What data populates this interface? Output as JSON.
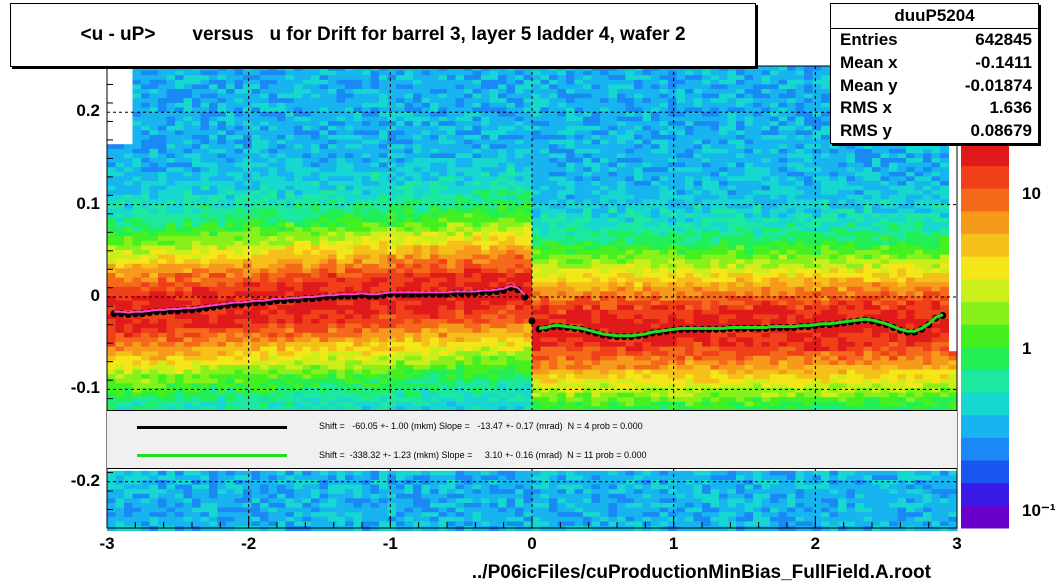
{
  "title": "<u - uP>       versus   u for Drift for barrel 3, layer 5 ladder 4, wafer 2",
  "stats": {
    "name": "duuP5204",
    "rows": [
      {
        "label": "Entries",
        "value": "642845"
      },
      {
        "label": "Mean x",
        "value": "-0.1411"
      },
      {
        "label": "Mean y",
        "value": "-0.01874"
      },
      {
        "label": "RMS x",
        "value": "1.636"
      },
      {
        "label": "RMS y",
        "value": "0.08679"
      }
    ]
  },
  "fits": [
    {
      "color": "#000000",
      "text": "Shift =   -60.05 +- 1.00 (mkm) Slope =   -13.47 +- 0.17 (mrad)  N = 4 prob = 0.000"
    },
    {
      "color": "#22dd22",
      "text": "Shift =  -338.32 +- 1.23 (mkm) Slope =     3.10 +- 0.16 (mrad)  N = 11 prob = 0.000"
    }
  ],
  "xlabel": "../P06icFiles/cuProductionMinBias_FullField.A.root",
  "colors": {
    "black_profile": "#000000",
    "green_fit": "#22dd22",
    "magenta_points": "#ff44cc",
    "palette": [
      "#6a00cc",
      "#3a1ae6",
      "#1a55f0",
      "#1a88f5",
      "#18b4f0",
      "#16d8d0",
      "#1ce8a0",
      "#22ee55",
      "#44f020",
      "#88f01a",
      "#ccee1a",
      "#f5e61a",
      "#f5c01a",
      "#f59a1a",
      "#f56a1a",
      "#f0401a",
      "#e01a1a"
    ]
  },
  "chart_data": {
    "type": "heatmap",
    "title": "<u - uP>       versus   u for Drift for barrel 3, layer 5 ladder 4, wafer 2",
    "xlabel": "../P06icFiles/cuProductionMinBias_FullField.A.root",
    "ylabel": "",
    "xlim": [
      -3,
      3
    ],
    "ylim": [
      -0.25,
      0.25
    ],
    "x_ticks": [
      "-3",
      "-2",
      "-1",
      "0",
      "1",
      "2",
      "3"
    ],
    "y_ticks": [
      "0.2",
      "0.1",
      "0",
      "-0.1",
      "-0.2"
    ],
    "z_log": true,
    "z_ticks": [
      "10",
      "1",
      "10⁻¹"
    ],
    "grid": true,
    "series": [
      {
        "name": "profile",
        "x": [
          -2.95,
          -2.9,
          -2.85,
          -2.8,
          -2.75,
          -2.7,
          -2.65,
          -2.6,
          -2.55,
          -2.5,
          -2.45,
          -2.4,
          -2.35,
          -2.3,
          -2.25,
          -2.2,
          -2.15,
          -2.1,
          -2.05,
          -2.0,
          -1.95,
          -1.9,
          -1.85,
          -1.8,
          -1.75,
          -1.7,
          -1.65,
          -1.6,
          -1.55,
          -1.5,
          -1.45,
          -1.4,
          -1.35,
          -1.3,
          -1.25,
          -1.2,
          -1.15,
          -1.1,
          -1.05,
          -1.0,
          -0.95,
          -0.9,
          -0.85,
          -0.8,
          -0.75,
          -0.7,
          -0.65,
          -0.6,
          -0.55,
          -0.5,
          -0.45,
          -0.4,
          -0.35,
          -0.3,
          -0.25,
          -0.2,
          -0.15,
          -0.1,
          -0.05,
          0.0,
          0.05,
          0.1,
          0.15,
          0.2,
          0.25,
          0.3,
          0.35,
          0.4,
          0.45,
          0.5,
          0.55,
          0.6,
          0.65,
          0.7,
          0.75,
          0.8,
          0.85,
          0.9,
          0.95,
          1.0,
          1.05,
          1.1,
          1.15,
          1.2,
          1.25,
          1.3,
          1.35,
          1.4,
          1.45,
          1.5,
          1.55,
          1.6,
          1.65,
          1.7,
          1.75,
          1.8,
          1.85,
          1.9,
          1.95,
          2.0,
          2.05,
          2.1,
          2.15,
          2.2,
          2.25,
          2.3,
          2.35,
          2.4,
          2.45,
          2.5,
          2.55,
          2.6,
          2.65,
          2.7,
          2.75,
          2.8,
          2.85,
          2.9
        ],
        "y": [
          -0.018,
          -0.018,
          -0.019,
          -0.018,
          -0.018,
          -0.017,
          -0.016,
          -0.016,
          -0.015,
          -0.015,
          -0.014,
          -0.014,
          -0.013,
          -0.012,
          -0.011,
          -0.01,
          -0.009,
          -0.008,
          -0.008,
          -0.007,
          -0.006,
          -0.006,
          -0.005,
          -0.004,
          -0.004,
          -0.003,
          -0.003,
          -0.002,
          -0.002,
          -0.001,
          0.0,
          0.0,
          0.001,
          0.001,
          0.001,
          0.002,
          0.001,
          0.001,
          0.002,
          0.003,
          0.003,
          0.003,
          0.003,
          0.003,
          0.003,
          0.003,
          0.003,
          0.003,
          0.004,
          0.004,
          0.004,
          0.004,
          0.005,
          0.005,
          0.006,
          0.007,
          0.01,
          0.008,
          0.0,
          -0.026,
          -0.035,
          -0.034,
          -0.032,
          -0.032,
          -0.033,
          -0.034,
          -0.035,
          -0.037,
          -0.039,
          -0.041,
          -0.042,
          -0.043,
          -0.043,
          -0.043,
          -0.042,
          -0.041,
          -0.039,
          -0.038,
          -0.037,
          -0.036,
          -0.035,
          -0.035,
          -0.035,
          -0.035,
          -0.035,
          -0.035,
          -0.035,
          -0.034,
          -0.034,
          -0.034,
          -0.034,
          -0.034,
          -0.034,
          -0.033,
          -0.033,
          -0.033,
          -0.033,
          -0.032,
          -0.032,
          -0.031,
          -0.03,
          -0.03,
          -0.029,
          -0.028,
          -0.027,
          -0.026,
          -0.025,
          -0.026,
          -0.028,
          -0.03,
          -0.033,
          -0.036,
          -0.038,
          -0.038,
          -0.035,
          -0.03,
          -0.023,
          -0.02
        ]
      }
    ]
  }
}
